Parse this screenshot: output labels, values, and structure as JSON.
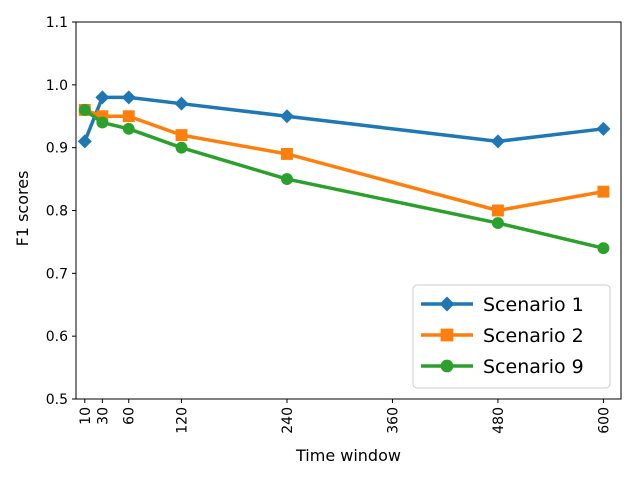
{
  "chart_data": {
    "type": "line",
    "xlabel": "Time window",
    "ylabel": "F1 scores",
    "xlim": [
      0,
      620
    ],
    "ylim": [
      0.5,
      1.1
    ],
    "x_ticks": [
      10,
      30,
      60,
      120,
      240,
      360,
      480,
      600
    ],
    "x_tick_labels": [
      "10",
      "30",
      "60",
      "120",
      "240",
      "360",
      "480",
      "600"
    ],
    "y_ticks": [
      0.5,
      0.6,
      0.7,
      0.8,
      0.9,
      1.0,
      1.1
    ],
    "y_tick_labels": [
      "0.5",
      "0.6",
      "0.7",
      "0.8",
      "0.9",
      "1.0",
      "1.1"
    ],
    "x_tick_rotation": "vertical",
    "grid": false,
    "legend_position": "lower right",
    "series": [
      {
        "name": "Scenario 1",
        "color": "#1f77b4",
        "marker": "diamond",
        "x": [
          10,
          30,
          60,
          120,
          240,
          480,
          600
        ],
        "values": [
          0.91,
          0.98,
          0.98,
          0.97,
          0.95,
          0.91,
          0.93
        ]
      },
      {
        "name": "Scenario 2",
        "color": "#ff7f0e",
        "marker": "square",
        "x": [
          10,
          30,
          60,
          120,
          240,
          480,
          600
        ],
        "values": [
          0.96,
          0.95,
          0.95,
          0.92,
          0.89,
          0.8,
          0.83
        ]
      },
      {
        "name": "Scenario 9",
        "color": "#2ca02c",
        "marker": "circle",
        "x": [
          10,
          30,
          60,
          120,
          240,
          480,
          600
        ],
        "values": [
          0.96,
          0.94,
          0.93,
          0.9,
          0.85,
          0.78,
          0.74
        ]
      }
    ]
  }
}
